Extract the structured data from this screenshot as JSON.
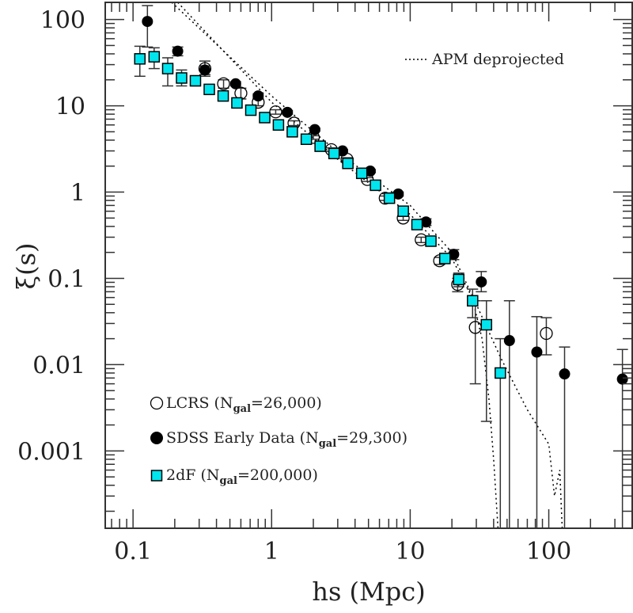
{
  "chart_data": {
    "type": "scatter",
    "title": "",
    "xlabel": "hs (Mpc)",
    "ylabel": "ξ(s)",
    "xscale": "log",
    "yscale": "log",
    "xlim": [
      0.063,
      400
    ],
    "ylim": [
      0.000127,
      158
    ],
    "grid": false,
    "x_ticks": [
      {
        "value": 0.1,
        "label": "0.1"
      },
      {
        "value": 1,
        "label": "1"
      },
      {
        "value": 10,
        "label": "10"
      },
      {
        "value": 100,
        "label": "100"
      }
    ],
    "y_ticks": [
      {
        "value": 100,
        "label": "100"
      },
      {
        "value": 10,
        "label": "10"
      },
      {
        "value": 1,
        "label": "1"
      },
      {
        "value": 0.1,
        "label": "0.1"
      },
      {
        "value": 0.01,
        "label": "0.01"
      },
      {
        "value": 0.001,
        "label": "0.001"
      }
    ],
    "series": [
      {
        "name": "LCRS",
        "legend_label": "LCRS (N",
        "legend_sub": "gal",
        "legend_tail": "=26,000)",
        "marker": "open-circle",
        "color": "#000000",
        "points": [
          {
            "x": 0.33,
            "y": 27,
            "lo": 22,
            "hi": 33
          },
          {
            "x": 0.45,
            "y": 18,
            "lo": 16,
            "hi": 20
          },
          {
            "x": 0.6,
            "y": 14,
            "lo": 12,
            "hi": 16
          },
          {
            "x": 0.8,
            "y": 11,
            "lo": 10,
            "hi": 12
          },
          {
            "x": 1.07,
            "y": 8.5,
            "lo": 8,
            "hi": 9
          },
          {
            "x": 1.45,
            "y": 6.3,
            "lo": 5.9,
            "hi": 6.7
          },
          {
            "x": 2.0,
            "y": 4.3,
            "lo": 4.1,
            "hi": 4.5
          },
          {
            "x": 2.7,
            "y": 3.1,
            "lo": 2.95,
            "hi": 3.25
          },
          {
            "x": 3.5,
            "y": 2.4,
            "lo": 2.3,
            "hi": 2.5
          },
          {
            "x": 4.9,
            "y": 1.4,
            "lo": 1.33,
            "hi": 1.47
          },
          {
            "x": 6.6,
            "y": 0.85,
            "lo": 0.8,
            "hi": 0.9
          },
          {
            "x": 8.9,
            "y": 0.5,
            "lo": 0.47,
            "hi": 0.53
          },
          {
            "x": 12,
            "y": 0.28,
            "lo": 0.26,
            "hi": 0.3
          },
          {
            "x": 16.3,
            "y": 0.16,
            "lo": 0.145,
            "hi": 0.175
          },
          {
            "x": 22,
            "y": 0.085,
            "lo": 0.07,
            "hi": 0.1
          },
          {
            "x": 29.5,
            "y": 0.027,
            "lo": 0.006,
            "hi": 0.055
          },
          {
            "x": 96,
            "y": 0.023,
            "lo": 0.013,
            "hi": 0.035
          }
        ]
      },
      {
        "name": "SDSS Early Data",
        "legend_label": "SDSS Early Data (N",
        "legend_sub": "gal",
        "legend_tail": "=29,300)",
        "marker": "filled-circle",
        "color": "#000000",
        "points": [
          {
            "x": 0.127,
            "y": 95,
            "lo": 48,
            "hi": 145
          },
          {
            "x": 0.21,
            "y": 43,
            "lo": 38,
            "hi": 48
          },
          {
            "x": 0.33,
            "y": 26,
            "lo": 23,
            "hi": 29
          },
          {
            "x": 0.55,
            "y": 18,
            "lo": 17,
            "hi": 19
          },
          {
            "x": 0.8,
            "y": 13,
            "lo": 12.3,
            "hi": 13.7
          },
          {
            "x": 1.3,
            "y": 8.4,
            "lo": 8.0,
            "hi": 8.8
          },
          {
            "x": 2.05,
            "y": 5.3,
            "lo": 5.1,
            "hi": 5.5
          },
          {
            "x": 3.25,
            "y": 3.0,
            "lo": 2.9,
            "hi": 3.1
          },
          {
            "x": 5.15,
            "y": 1.75,
            "lo": 1.68,
            "hi": 1.82
          },
          {
            "x": 8.2,
            "y": 0.95,
            "lo": 0.9,
            "hi": 1.0
          },
          {
            "x": 13,
            "y": 0.45,
            "lo": 0.41,
            "hi": 0.49
          },
          {
            "x": 20.6,
            "y": 0.19,
            "lo": 0.165,
            "hi": 0.215
          },
          {
            "x": 32.6,
            "y": 0.091,
            "lo": 0.07,
            "hi": 0.12
          },
          {
            "x": 52,
            "y": 0.019,
            "lo": 0.0001,
            "hi": 0.055
          },
          {
            "x": 82,
            "y": 0.014,
            "lo": 0.0001,
            "hi": 0.036
          },
          {
            "x": 130,
            "y": 0.0078,
            "lo": 0.0001,
            "hi": 0.016
          },
          {
            "x": 340,
            "y": 0.0068,
            "lo": 0.0001,
            "hi": 0.015
          }
        ]
      },
      {
        "name": "2dF",
        "legend_label": "2dF (N",
        "legend_sub": "gal",
        "legend_tail": "=200,000)",
        "marker": "filled-square",
        "color": "#00e5ee",
        "points": [
          {
            "x": 0.112,
            "y": 35,
            "lo": 22,
            "hi": 49
          },
          {
            "x": 0.142,
            "y": 37,
            "lo": 27,
            "hi": 47
          },
          {
            "x": 0.178,
            "y": 27,
            "lo": 17,
            "hi": 36
          },
          {
            "x": 0.224,
            "y": 21,
            "lo": 17,
            "hi": 26
          },
          {
            "x": 0.282,
            "y": 19.5,
            "lo": 17,
            "hi": 22
          },
          {
            "x": 0.355,
            "y": 15.5,
            "lo": 14.5,
            "hi": 16.5
          },
          {
            "x": 0.447,
            "y": 13,
            "lo": 12.3,
            "hi": 13.7
          },
          {
            "x": 0.562,
            "y": 10.8,
            "lo": 10.3,
            "hi": 11.3
          },
          {
            "x": 0.708,
            "y": 8.9,
            "lo": 8.5,
            "hi": 9.3
          },
          {
            "x": 0.891,
            "y": 7.3,
            "lo": 7.0,
            "hi": 7.6
          },
          {
            "x": 1.12,
            "y": 6.0,
            "lo": 5.8,
            "hi": 6.2
          },
          {
            "x": 1.41,
            "y": 5.0,
            "lo": 4.85,
            "hi": 5.15
          },
          {
            "x": 1.78,
            "y": 4.1,
            "lo": 3.95,
            "hi": 4.25
          },
          {
            "x": 2.24,
            "y": 3.4,
            "lo": 3.3,
            "hi": 3.5
          },
          {
            "x": 2.82,
            "y": 2.8,
            "lo": 2.7,
            "hi": 2.9
          },
          {
            "x": 3.55,
            "y": 2.15,
            "lo": 2.07,
            "hi": 2.23
          },
          {
            "x": 4.47,
            "y": 1.65,
            "lo": 1.58,
            "hi": 1.72
          },
          {
            "x": 5.62,
            "y": 1.2,
            "lo": 1.15,
            "hi": 1.25
          },
          {
            "x": 7.08,
            "y": 0.85,
            "lo": 0.81,
            "hi": 0.89
          },
          {
            "x": 8.91,
            "y": 0.6,
            "lo": 0.56,
            "hi": 0.64
          },
          {
            "x": 11.2,
            "y": 0.42,
            "lo": 0.39,
            "hi": 0.45
          },
          {
            "x": 14.1,
            "y": 0.27,
            "lo": 0.245,
            "hi": 0.295
          },
          {
            "x": 17.8,
            "y": 0.17,
            "lo": 0.15,
            "hi": 0.19
          },
          {
            "x": 22.4,
            "y": 0.097,
            "lo": 0.08,
            "hi": 0.115
          },
          {
            "x": 28.2,
            "y": 0.055,
            "lo": 0.035,
            "hi": 0.075
          },
          {
            "x": 35.5,
            "y": 0.029,
            "lo": 0.0022,
            "hi": 0.055
          },
          {
            "x": 44.7,
            "y": 0.008,
            "lo": 0.0001,
            "hi": 0.02
          }
        ]
      }
    ],
    "reference_lines": {
      "name": "APM deprojected",
      "style": "dotted",
      "color": "#000000",
      "upper": [
        {
          "x": 0.19,
          "y": 158
        },
        {
          "x": 1,
          "y": 13
        },
        {
          "x": 3,
          "y": 2.9
        },
        {
          "x": 10,
          "y": 0.7
        },
        {
          "x": 20,
          "y": 0.2
        },
        {
          "x": 30,
          "y": 0.05
        },
        {
          "x": 45,
          "y": 0.012
        },
        {
          "x": 70,
          "y": 0.003
        },
        {
          "x": 100,
          "y": 0.0012
        },
        {
          "x": 110,
          "y": 0.0003
        },
        {
          "x": 120,
          "y": 0.0006
        },
        {
          "x": 125,
          "y": 0.000127
        }
      ],
      "lower": [
        {
          "x": 0.21,
          "y": 158
        },
        {
          "x": 1,
          "y": 11
        },
        {
          "x": 3,
          "y": 2.4
        },
        {
          "x": 10,
          "y": 0.55
        },
        {
          "x": 20,
          "y": 0.17
        },
        {
          "x": 28,
          "y": 0.06
        },
        {
          "x": 33,
          "y": 0.02
        },
        {
          "x": 37,
          "y": 0.004
        },
        {
          "x": 40,
          "y": 0.0008
        },
        {
          "x": 43,
          "y": 0.000127
        }
      ]
    },
    "legend": {
      "position": "bottom-left",
      "apm_position": "top-right",
      "apm_label": "APM deprojected"
    }
  }
}
